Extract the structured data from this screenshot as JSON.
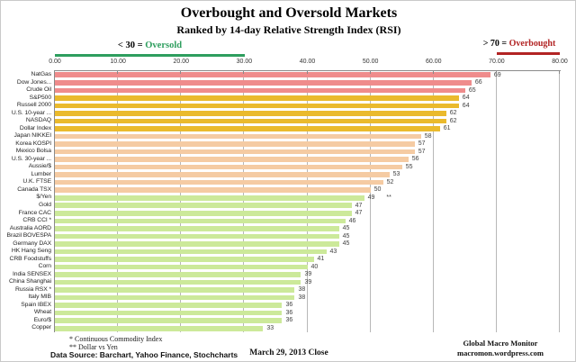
{
  "header": {
    "title": "Overbought and Oversold Markets",
    "subtitle": "Ranked by 14-day Relative Strength Index (RSI)"
  },
  "legend": {
    "oversold_prefix": "< 30 = ",
    "oversold_label": "Oversold",
    "oversold_color": "#2e9e5e",
    "overbought_prefix": "> 70 = ",
    "overbought_label": "Overbought",
    "overbought_color": "#b22424"
  },
  "chart_data": {
    "type": "bar",
    "orientation": "horizontal",
    "title": "Overbought and Oversold Markets",
    "subtitle": "Ranked by 14-day Relative Strength Index (RSI)",
    "xlim": [
      0,
      80
    ],
    "axis_ticks": [
      "0.00",
      "10.00",
      "20.00",
      "30.00",
      "40.00",
      "50.00",
      "60.00",
      "70.00",
      "80.00"
    ],
    "grid": true,
    "categories": [
      "NatGas",
      "Dow Jones...",
      "Crude Oil",
      "S&P500",
      "Russell 2000",
      "U.S. 10-year ...",
      "NASDAQ",
      "Dollar Index",
      "Japan NIKKEI",
      "Korea KOSPI",
      "Mexico Bolsa",
      "U.S. 30-year ...",
      "Aussie/$",
      "Lumber",
      "U.K. FTSE",
      "Canada TSX",
      "$/Yen",
      "Gold",
      "France CAC",
      "CRB CCI *",
      "Australia AORD",
      "Brazil BOVESPA",
      "Germany DAX",
      "HK Hang Seng",
      "CRB Foodstuffs",
      "Corn",
      "India SENSEX",
      "China Shanghai",
      "Russia RSX *",
      "Italy  MIB",
      "Spain IBEX",
      "Wheat",
      "Euro/$",
      "Copper"
    ],
    "values": [
      69,
      66,
      65,
      64,
      64,
      62,
      62,
      61,
      58,
      57,
      57,
      56,
      55,
      53,
      52,
      50,
      49,
      47,
      47,
      46,
      45,
      45,
      45,
      43,
      41,
      40,
      39,
      39,
      38,
      38,
      36,
      36,
      36,
      33
    ],
    "groups": [
      "salmon",
      "salmon",
      "salmon",
      "gold",
      "gold",
      "gold",
      "gold",
      "gold",
      "peach",
      "peach",
      "peach",
      "peach",
      "peach",
      "peach",
      "peach",
      "peach",
      "green",
      "green",
      "green",
      "green",
      "green",
      "green",
      "green",
      "green",
      "green",
      "green",
      "green",
      "green",
      "green",
      "green",
      "green",
      "green",
      "green",
      "green"
    ],
    "group_colors": {
      "salmon": "#ef8c8c",
      "gold": "#eaba2d",
      "peach": "#f5cba3",
      "green": "#cce99a"
    },
    "value_annotations": [
      {
        "index": 16,
        "text": "**"
      }
    ]
  },
  "footnotes": {
    "note1": "* Continuous Commodity Index",
    "note2": "** Dollar vs Yen"
  },
  "footer": {
    "datasource": "Data Source:  Barchart,  Yahoo Finance, Stochcharts",
    "date": "March 29, 2013  Close",
    "brand_line1": "Global Macro Monitor",
    "brand_line2": "macromon.wordpress.com"
  }
}
